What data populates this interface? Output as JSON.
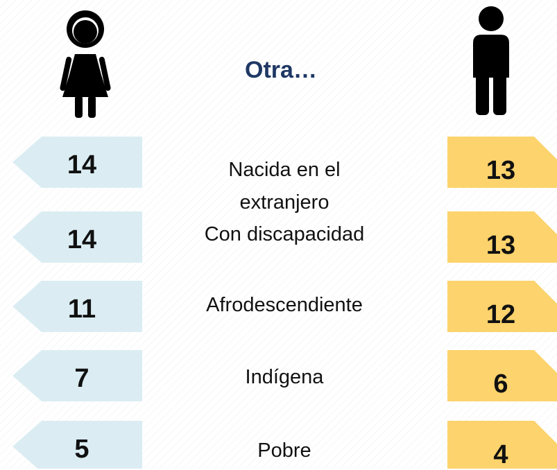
{
  "title": "Otra…",
  "rows": [
    {
      "label": "Nacida en el extranjero",
      "female": "14",
      "male": "13"
    },
    {
      "label": "Con discapacidad",
      "female": "14",
      "male": "13"
    },
    {
      "label": "Afrodescendiente",
      "female": "11",
      "male": "12"
    },
    {
      "label": "Indígena",
      "female": "7",
      "male": "6"
    },
    {
      "label": "Pobre",
      "female": "5",
      "male": "4"
    }
  ]
}
